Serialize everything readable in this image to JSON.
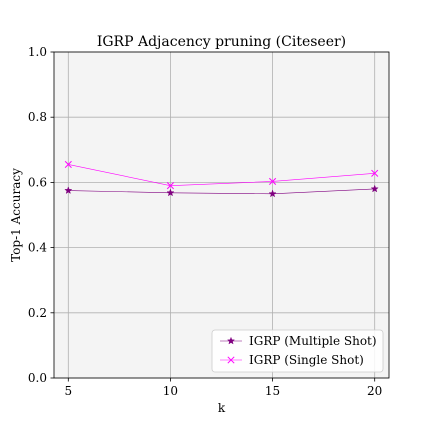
{
  "chart_data": {
    "type": "line",
    "title": "IGRP Adjacency pruning (Citeseer)",
    "xlabel": "k",
    "ylabel": "Top-1 Accuracy",
    "x": [
      5,
      10,
      15,
      20
    ],
    "xticks": [
      5,
      10,
      15,
      20
    ],
    "xlim": [
      4.3,
      20.7
    ],
    "yticks": [
      0.0,
      0.2,
      0.4,
      0.6,
      0.8,
      1.0
    ],
    "ytick_labels": [
      "0.0",
      "0.2",
      "0.4",
      "0.6",
      "0.8",
      "1.0"
    ],
    "ylim": [
      0.0,
      1.0
    ],
    "grid": true,
    "legend_position": "lower-right",
    "series": [
      {
        "name": "IGRP (Multiple Shot)",
        "values": [
          0.575,
          0.568,
          0.565,
          0.58
        ],
        "color": "#800080",
        "marker": "star"
      },
      {
        "name": "IGRP (Single Shot)",
        "values": [
          0.655,
          0.59,
          0.603,
          0.628
        ],
        "color": "#ff00ff",
        "marker": "x"
      }
    ],
    "plot_background": "#f4f4f4",
    "grid_color": "#b0b0b0"
  }
}
